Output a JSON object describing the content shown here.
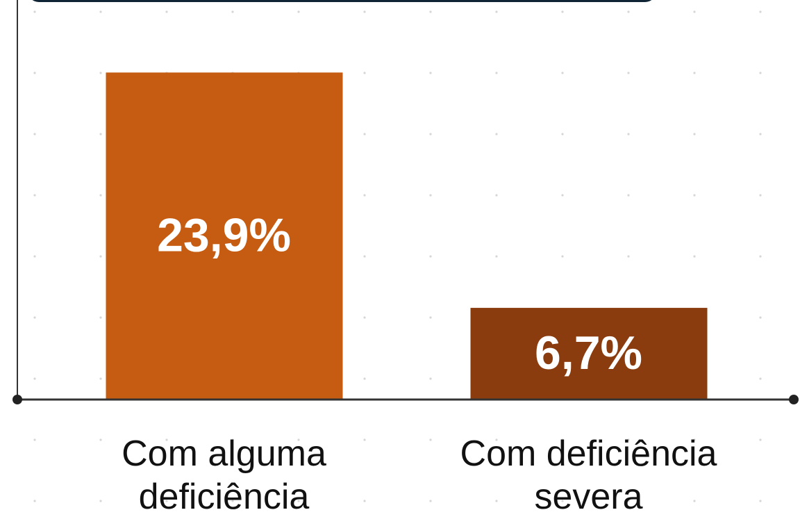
{
  "chart_data": {
    "type": "bar",
    "categories": [
      "Com alguma deficiência",
      "Com deficiência severa"
    ],
    "values": [
      23.9,
      6.7
    ],
    "value_labels": [
      "23,9%",
      "6,7%"
    ],
    "colors": [
      "#c55c12",
      "#8a3c0e"
    ],
    "ylim": [
      0,
      29.2
    ]
  }
}
